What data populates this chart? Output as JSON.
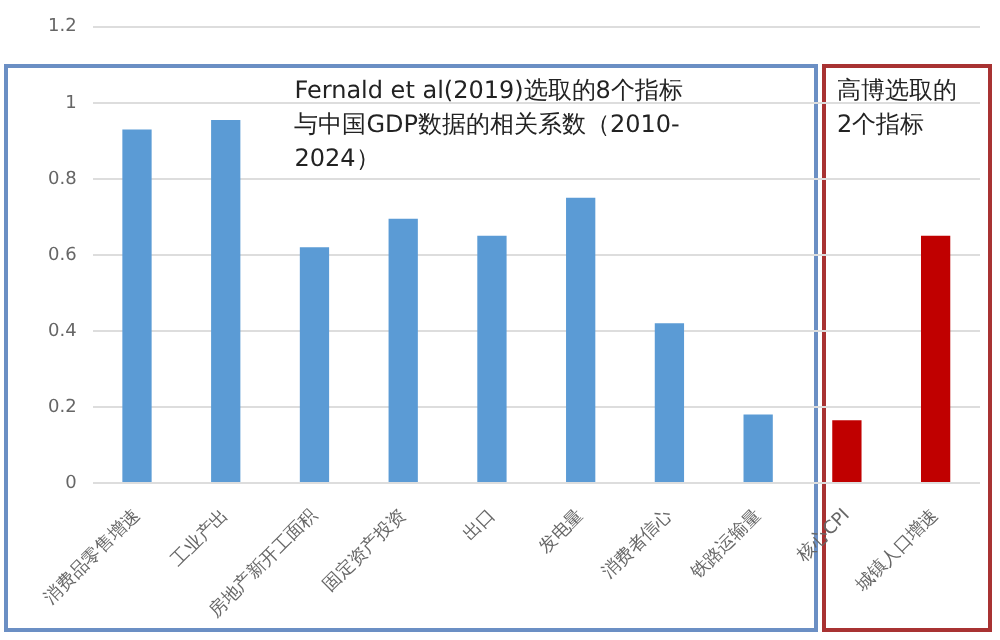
{
  "chart_data": {
    "type": "bar",
    "categories": [
      "消费品零售增速",
      "工业产出",
      "房地产新开工面积",
      "固定资产投资",
      "出口",
      "发电量",
      "消费者信心",
      "铁路运输量",
      "核心CPI",
      "城镇人口增速"
    ],
    "values": [
      0.93,
      0.955,
      0.62,
      0.695,
      0.65,
      0.75,
      0.42,
      0.18,
      0.165,
      0.65
    ],
    "colors": [
      "#5b9bd5",
      "#5b9bd5",
      "#5b9bd5",
      "#5b9bd5",
      "#5b9bd5",
      "#5b9bd5",
      "#5b9bd5",
      "#5b9bd5",
      "#c00000",
      "#c00000"
    ],
    "ylim": [
      0,
      1.2
    ],
    "yticks": [
      0,
      0.2,
      0.4,
      0.6,
      0.8,
      1,
      1.2
    ],
    "grid": "y",
    "legend": false,
    "annotations": [
      "Fernald et al(2019)选取的8个指标与中国GDP数据的相关系数（2010-2024）",
      "高博选取的2个指标"
    ]
  }
}
